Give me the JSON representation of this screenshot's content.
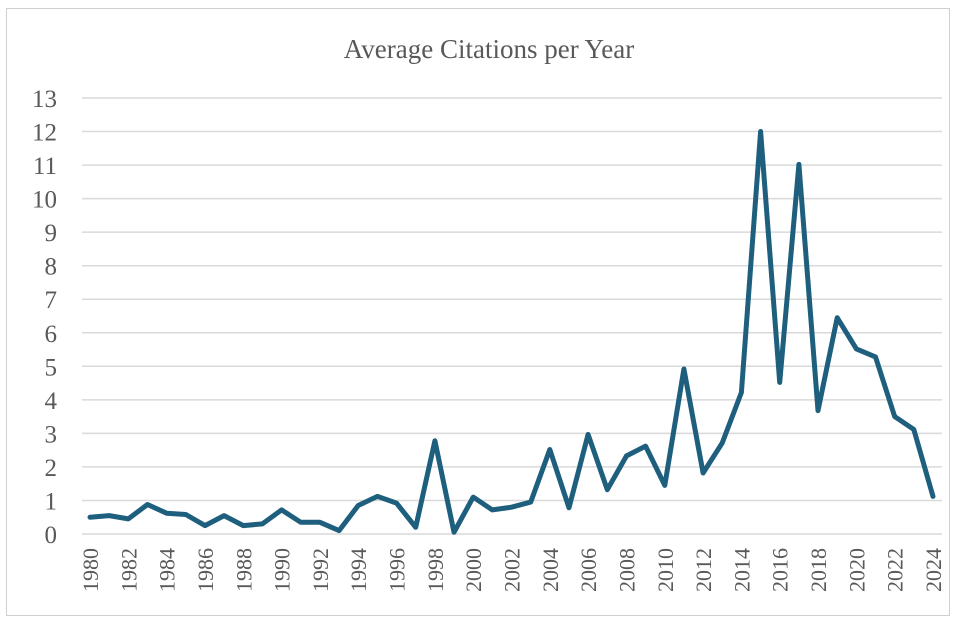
{
  "chart_data": {
    "type": "line",
    "title": "Average Citations per Year",
    "xlabel": "",
    "ylabel": "",
    "ylim": [
      0,
      13
    ],
    "yticks": [
      0,
      1,
      2,
      3,
      4,
      5,
      6,
      7,
      8,
      9,
      10,
      11,
      12,
      13
    ],
    "grid": true,
    "line_color": "#1F5F7E",
    "x": [
      1980,
      1981,
      1982,
      1983,
      1984,
      1985,
      1986,
      1987,
      1988,
      1989,
      1990,
      1991,
      1992,
      1993,
      1994,
      1995,
      1996,
      1997,
      1998,
      1999,
      2000,
      2001,
      2002,
      2003,
      2004,
      2005,
      2006,
      2007,
      2008,
      2009,
      2010,
      2011,
      2012,
      2013,
      2014,
      2015,
      2016,
      2017,
      2018,
      2019,
      2020,
      2021,
      2022,
      2023,
      2024
    ],
    "xtick_labels": [
      "1980",
      "1982",
      "1984",
      "1986",
      "1988",
      "1990",
      "1992",
      "1994",
      "1996",
      "1998",
      "2000",
      "2002",
      "2004",
      "2006",
      "2008",
      "2010",
      "2012",
      "2014",
      "2016",
      "2018",
      "2020",
      "2022",
      "2024"
    ],
    "series": [
      {
        "values": [
          0.5,
          0.55,
          0.45,
          0.88,
          0.62,
          0.58,
          0.25,
          0.55,
          0.25,
          0.3,
          0.72,
          0.35,
          0.35,
          0.1,
          0.85,
          1.12,
          0.92,
          0.2,
          2.78,
          0.05,
          1.1,
          0.72,
          0.8,
          0.95,
          2.52,
          0.78,
          2.97,
          1.32,
          2.33,
          2.62,
          1.45,
          4.92,
          1.82,
          2.72,
          4.22,
          12.0,
          4.52,
          11.02,
          3.68,
          6.45,
          5.52,
          5.28,
          3.5,
          3.12,
          1.12
        ]
      }
    ]
  }
}
